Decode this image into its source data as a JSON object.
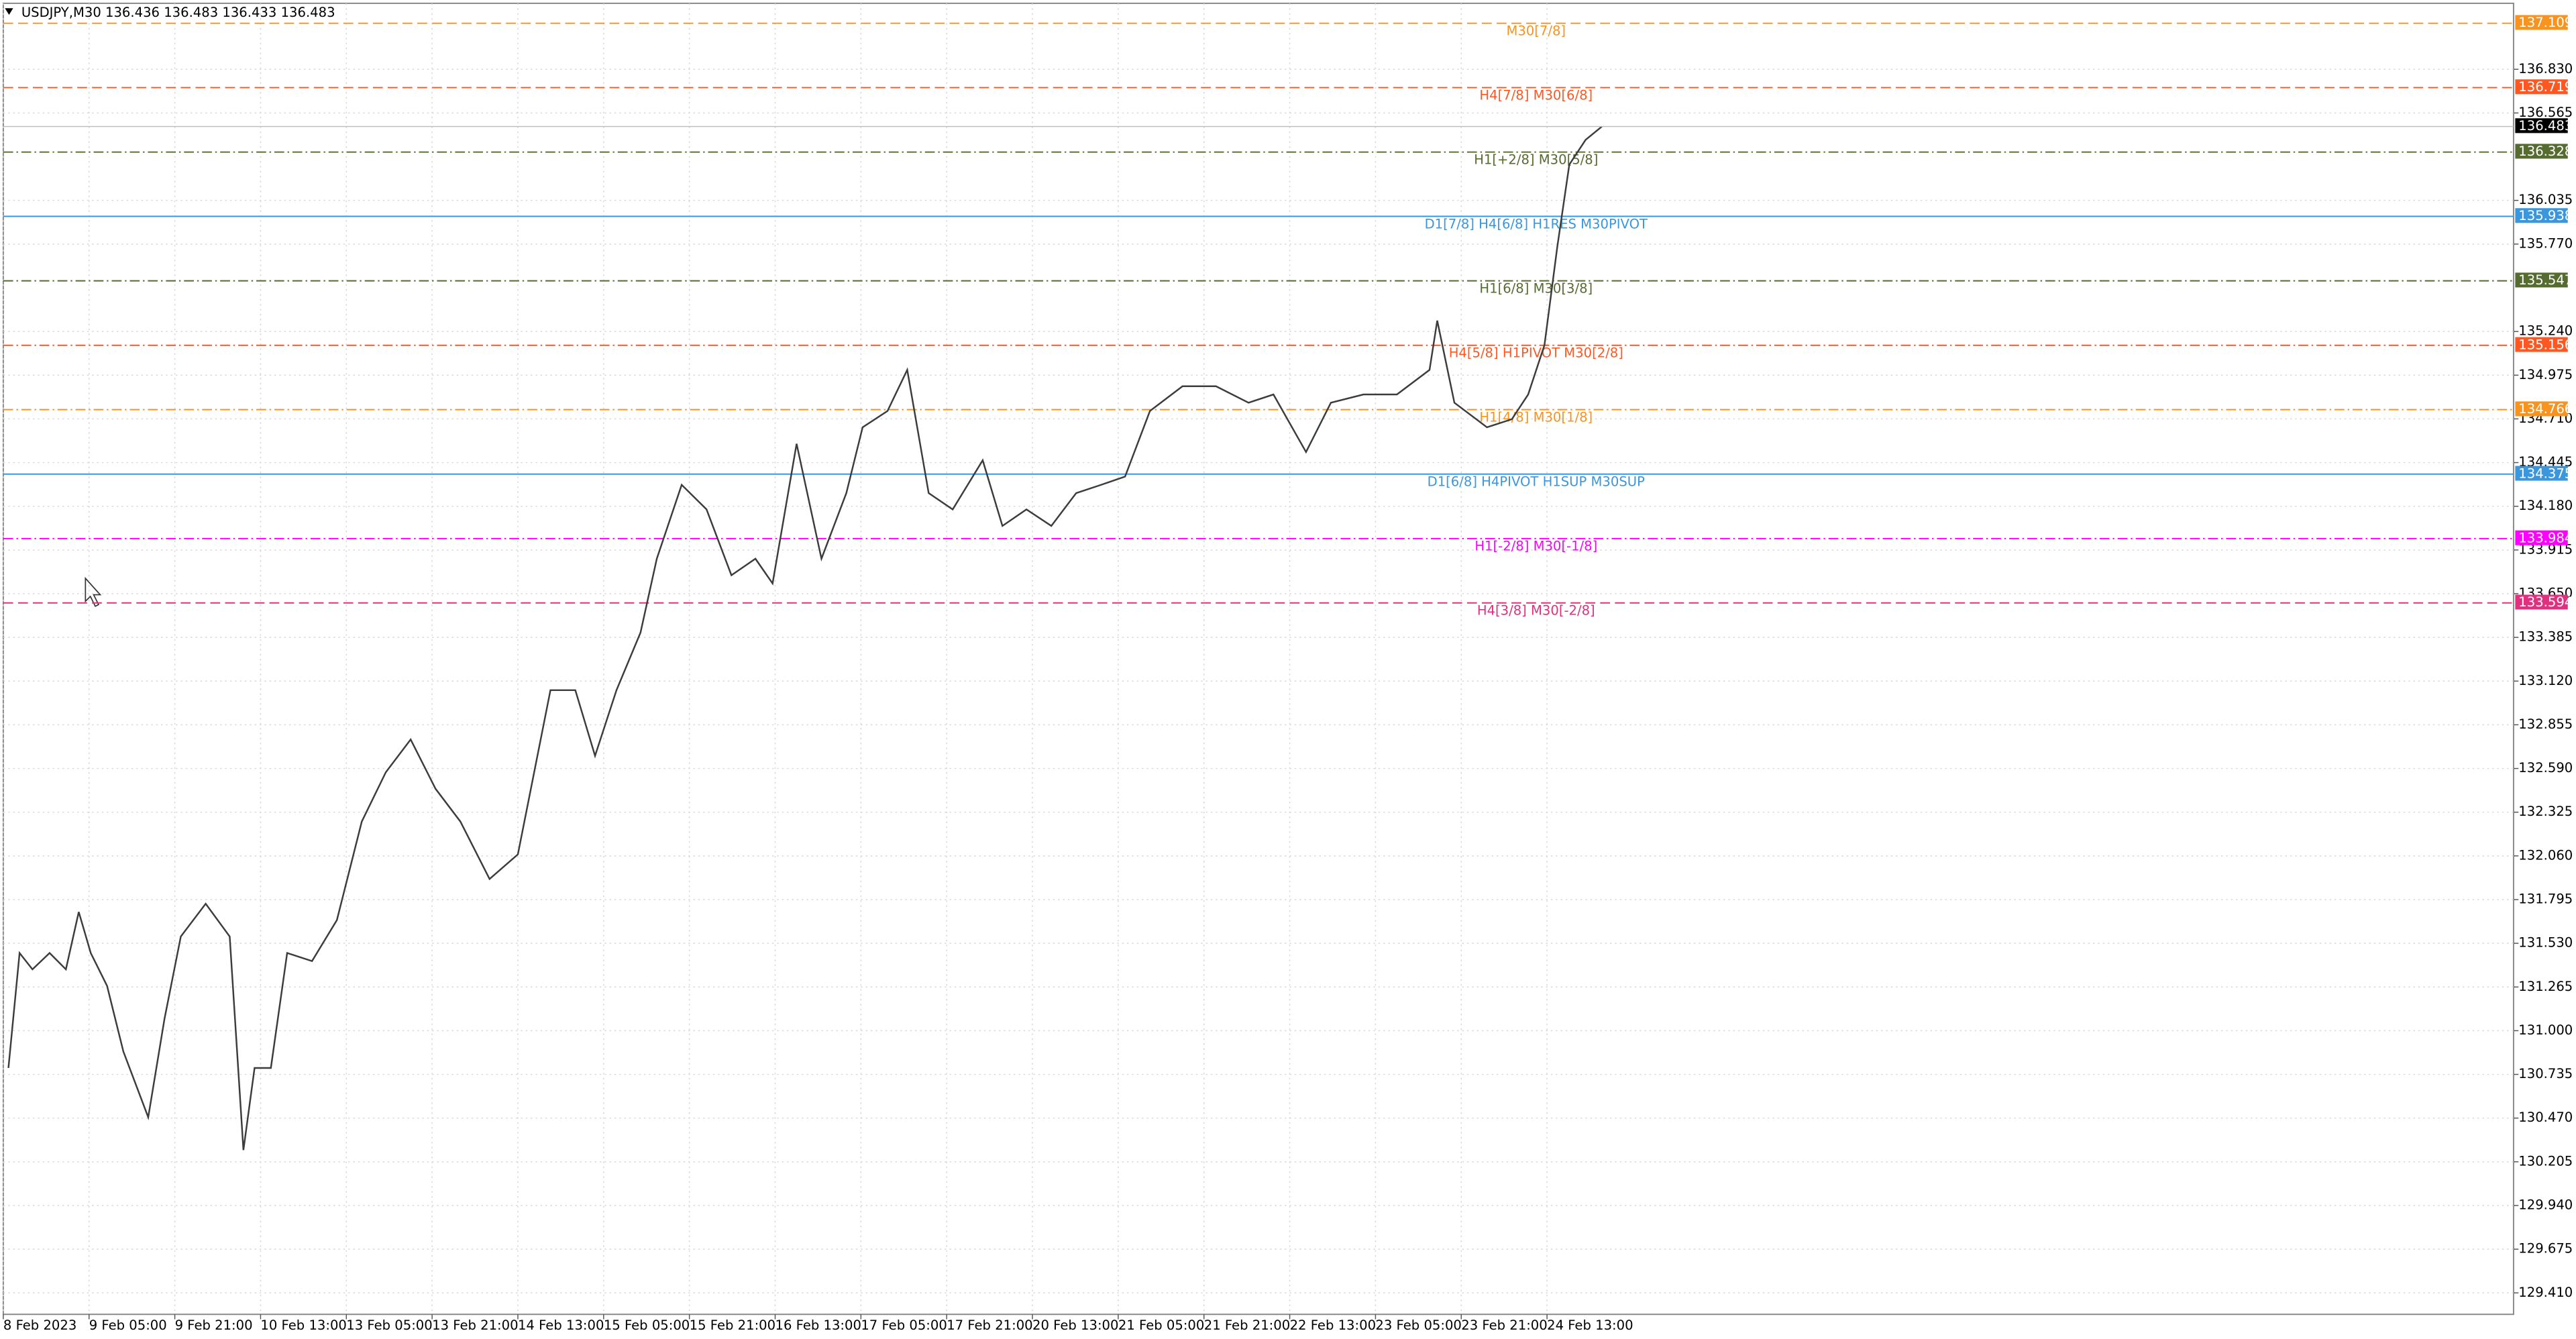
{
  "chart_data": {
    "type": "line",
    "title": "USDJPY,M30  136.436 136.483 136.433 136.483",
    "xlim": [
      0,
      29.27
    ],
    "xticks": [
      {
        "value": 0,
        "label": "8 Feb 2023"
      },
      {
        "value": 1,
        "label": "9 Feb 05:00"
      },
      {
        "value": 2,
        "label": "9 Feb 21:00"
      },
      {
        "value": 3,
        "label": "10 Feb 13:00"
      },
      {
        "value": 4,
        "label": "13 Feb 05:00"
      },
      {
        "value": 5,
        "label": "13 Feb 21:00"
      },
      {
        "value": 6,
        "label": "14 Feb 13:00"
      },
      {
        "value": 7,
        "label": "15 Feb 05:00"
      },
      {
        "value": 8,
        "label": "15 Feb 21:00"
      },
      {
        "value": 9,
        "label": "16 Feb 13:00"
      },
      {
        "value": 10,
        "label": "17 Feb 05:00"
      },
      {
        "value": 11,
        "label": "17 Feb 21:00"
      },
      {
        "value": 12,
        "label": "20 Feb 13:00"
      },
      {
        "value": 13,
        "label": "21 Feb 05:00"
      },
      {
        "value": 14,
        "label": "21 Feb 21:00"
      },
      {
        "value": 15,
        "label": "22 Feb 13:00"
      },
      {
        "value": 16,
        "label": "23 Feb 05:00"
      },
      {
        "value": 17,
        "label": "23 Feb 21:00"
      },
      {
        "value": 18,
        "label": "24 Feb 13:00"
      }
    ],
    "ylim": [
      129.28,
      137.23
    ],
    "yticks": [
      {
        "value": 136.83,
        "label": "136.830"
      },
      136.565,
      136.035,
      {
        "value": 135.77,
        "label": "135.770"
      },
      {
        "value": 135.24,
        "label": "135.240"
      },
      134.975,
      {
        "value": 134.71,
        "label": "134.710"
      },
      134.445,
      {
        "value": 134.18,
        "label": "134.180"
      },
      133.915,
      {
        "value": 133.65,
        "label": "133.650"
      },
      133.385,
      {
        "value": 133.12,
        "label": "133.120"
      },
      132.855,
      {
        "value": 132.59,
        "label": "132.590"
      },
      132.325,
      {
        "value": 132.06,
        "label": "132.060"
      },
      131.795,
      {
        "value": 131.53,
        "label": "131.530"
      },
      131.265,
      {
        "value": 131.0,
        "label": "131.000"
      },
      130.735,
      {
        "value": 130.47,
        "label": "130.470"
      },
      130.205,
      {
        "value": 129.94,
        "label": "129.940"
      },
      129.675,
      {
        "value": 129.41,
        "label": "129.410"
      }
    ],
    "grid": true,
    "series": [
      {
        "name": "USDJPY",
        "color": "#3c3c3c",
        "x": [
          0.06,
          0.19,
          0.34,
          0.54,
          0.73,
          0.88,
          1.02,
          1.21,
          1.4,
          1.69,
          1.88,
          2.07,
          2.36,
          2.64,
          2.8,
          2.93,
          3.12,
          3.31,
          3.6,
          3.89,
          4.18,
          4.46,
          4.75,
          5.04,
          5.33,
          5.67,
          6.0,
          6.19,
          6.38,
          6.67,
          6.9,
          7.15,
          7.43,
          7.62,
          7.91,
          8.2,
          8.49,
          8.77,
          8.97,
          9.25,
          9.54,
          9.83,
          10.02,
          10.31,
          10.54,
          10.79,
          11.07,
          11.42,
          11.65,
          11.93,
          12.22,
          12.51,
          12.8,
          13.08,
          13.37,
          13.75,
          14.14,
          14.52,
          14.81,
          15.19,
          15.48,
          15.86,
          16.25,
          16.63,
          16.72,
          16.92,
          17.3,
          17.59,
          17.78,
          17.97,
          18.12,
          18.26,
          18.45,
          18.64
        ],
        "values": [
          130.774,
          131.471,
          131.372,
          131.471,
          131.372,
          131.72,
          131.471,
          131.272,
          130.874,
          130.475,
          131.073,
          131.571,
          131.77,
          131.571,
          130.276,
          130.774,
          130.774,
          131.471,
          131.422,
          131.671,
          132.268,
          132.567,
          132.766,
          132.467,
          132.268,
          131.92,
          132.069,
          132.567,
          133.065,
          133.065,
          132.667,
          133.065,
          133.414,
          133.862,
          134.31,
          134.161,
          133.762,
          133.862,
          133.712,
          134.559,
          133.862,
          134.26,
          134.659,
          134.758,
          135.007,
          134.26,
          134.161,
          134.459,
          134.061,
          134.161,
          134.061,
          134.26,
          134.31,
          134.36,
          134.758,
          134.908,
          134.908,
          134.808,
          134.858,
          134.509,
          134.808,
          134.858,
          134.858,
          135.007,
          135.306,
          134.808,
          134.659,
          134.708,
          134.858,
          135.157,
          135.754,
          136.252,
          136.402,
          136.483
        ]
      }
    ],
    "levels": [
      {
        "label": "M30[7/8]",
        "value": 137.109,
        "color": "#f7931e",
        "style": "dashed"
      },
      {
        "label": "H4[7/8] M30[6/8]",
        "value": 136.719,
        "color": "#ff5722",
        "style": "dashed"
      },
      {
        "label": "H1[+2/8] M30[5/8]",
        "value": 136.328,
        "color": "#556b2f",
        "style": "dashdot"
      },
      {
        "label": "D1[7/8] H4[6/8] H1RES M30PIVOT",
        "value": 135.938,
        "color": "#3a96dd",
        "style": "solid"
      },
      {
        "label": "H1[6/8] M30[3/8]",
        "value": 135.547,
        "color": "#556b2f",
        "style": "dashdot"
      },
      {
        "label": "H4[5/8] H1PIVOT M30[2/8]",
        "value": 135.156,
        "color": "#ff5722",
        "style": "dashdot"
      },
      {
        "label": "H1[4/8] M30[1/8]",
        "value": 134.766,
        "color": "#f7931e",
        "style": "dashdot"
      },
      {
        "label": "D1[6/8] H4PIVOT H1SUP M30SUP",
        "value": 134.375,
        "color": "#3a96dd",
        "style": "solid"
      },
      {
        "label": "H1[-2/8] M30[-1/8]",
        "value": 133.984,
        "color": "#ff00ff",
        "style": "dashdot"
      },
      {
        "label": "H4[3/8] M30[-2/8]",
        "value": 133.594,
        "color": "#e0307f",
        "style": "dashed"
      }
    ],
    "last_price": 136.483,
    "last_price_color": "#000000"
  }
}
